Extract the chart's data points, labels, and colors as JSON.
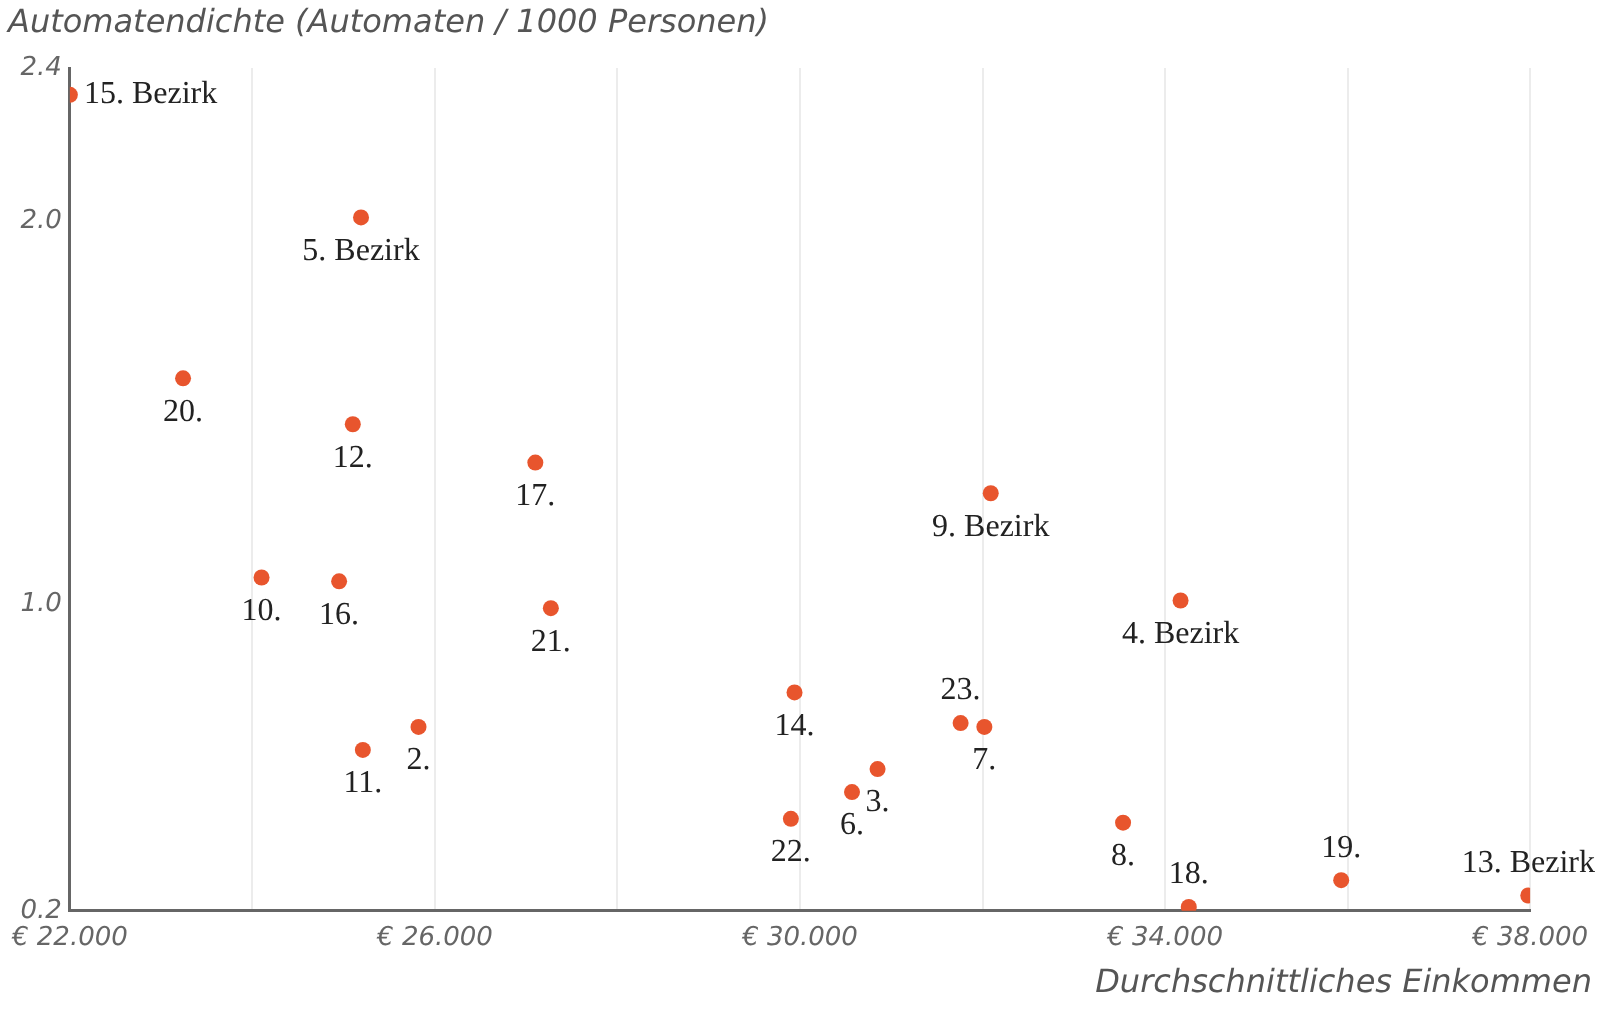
{
  "chart_data": {
    "type": "scatter",
    "xlabel": "Durchschnittliches Einkommen",
    "ylabel": "Automatendichte (Automaten / 1000 Personen)",
    "x": [
      22.0,
      25.19,
      23.24,
      25.1,
      27.1,
      24.1,
      24.95,
      27.27,
      25.21,
      25.82,
      29.94,
      29.9,
      30.57,
      30.85,
      32.02,
      31.76,
      32.09,
      34.17,
      33.54,
      34.26,
      35.93,
      37.98
    ],
    "series": [
      {
        "color": "#e8552d",
        "values": [
          2.33,
          2.01,
          1.59,
          1.47,
          1.37,
          1.07,
          1.06,
          0.99,
          0.62,
          0.68,
          0.77,
          0.44,
          0.51,
          0.57,
          0.68,
          0.69,
          1.29,
          1.01,
          0.43,
          0.21,
          0.28,
          0.24
        ]
      }
    ],
    "annotations": [
      {
        "text": "15. Bezirk",
        "x": 22.0,
        "y": 2.33
      },
      {
        "text": "5. Bezirk",
        "x": 25.19,
        "y": 2.01
      },
      {
        "text": "20.",
        "x": 23.24,
        "y": 1.59
      },
      {
        "text": "12.",
        "x": 25.1,
        "y": 1.47
      },
      {
        "text": "17.",
        "x": 27.1,
        "y": 1.37
      },
      {
        "text": "10.",
        "x": 24.1,
        "y": 1.07
      },
      {
        "text": "16.",
        "x": 24.95,
        "y": 1.06
      },
      {
        "text": "21.",
        "x": 27.27,
        "y": 0.99
      },
      {
        "text": "11.",
        "x": 25.21,
        "y": 0.62
      },
      {
        "text": "2.",
        "x": 25.82,
        "y": 0.68
      },
      {
        "text": "14.",
        "x": 29.94,
        "y": 0.77
      },
      {
        "text": "22.",
        "x": 29.9,
        "y": 0.44
      },
      {
        "text": "6.",
        "x": 30.57,
        "y": 0.51
      },
      {
        "text": "3.",
        "x": 30.85,
        "y": 0.57
      },
      {
        "text": "7.",
        "x": 32.02,
        "y": 0.68
      },
      {
        "text": "23.",
        "x": 31.76,
        "y": 0.69
      },
      {
        "text": "9. Bezirk",
        "x": 32.09,
        "y": 1.29
      },
      {
        "text": "4. Bezirk",
        "x": 34.17,
        "y": 1.01
      },
      {
        "text": "8.",
        "x": 33.54,
        "y": 0.43
      },
      {
        "text": "18.",
        "x": 34.26,
        "y": 0.21
      },
      {
        "text": "19.",
        "x": 35.93,
        "y": 0.28
      },
      {
        "text": "13. Bezirk",
        "x": 37.98,
        "y": 0.24
      }
    ],
    "xlim": [
      22,
      38
    ],
    "xticks": [
      {
        "value": 22,
        "label": "€ 22.000"
      },
      {
        "value": 24,
        "label": null
      },
      {
        "value": 26,
        "label": "€ 26.000"
      },
      {
        "value": 28,
        "label": null
      },
      {
        "value": 30,
        "label": "€ 30.000"
      },
      {
        "value": 32,
        "label": null
      },
      {
        "value": 34,
        "label": "€ 34.000"
      },
      {
        "value": 36,
        "label": null
      },
      {
        "value": 38,
        "label": "€ 38.000"
      }
    ],
    "ylim": [
      0.2,
      2.4
    ],
    "yticks": [
      {
        "value": 0.2,
        "label": "0.2"
      },
      {
        "value": 1.0,
        "label": "1.0"
      },
      {
        "value": 2.0,
        "label": "2.0"
      },
      {
        "value": 2.4,
        "label": "2.4"
      }
    ],
    "grid": "x",
    "marker": "circle",
    "legend": false
  }
}
